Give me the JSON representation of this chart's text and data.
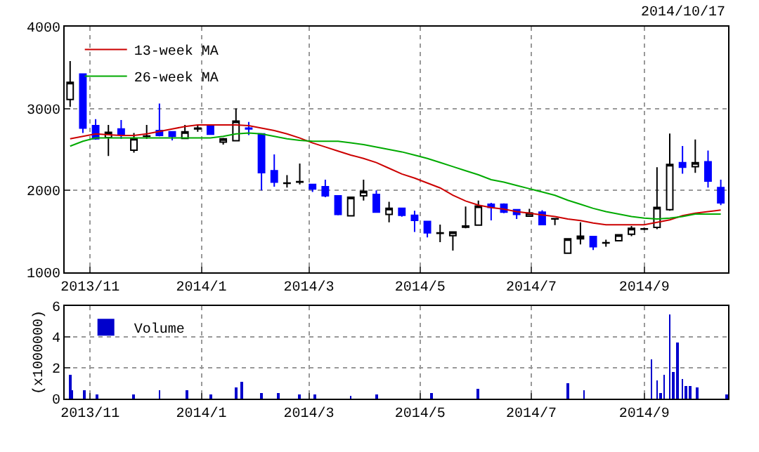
{
  "chart_data": [
    {
      "type": "candlestick",
      "x": [
        "2013-10-21",
        "2013-10-28",
        "2013-11-04",
        "2013-11-11",
        "2013-11-18",
        "2013-11-25",
        "2013-12-02",
        "2013-12-09",
        "2013-12-16",
        "2013-12-23",
        "2013-12-30",
        "2014-01-06",
        "2014-01-13",
        "2014-01-20",
        "2014-01-27",
        "2014-02-03",
        "2014-02-10",
        "2014-02-17",
        "2014-02-24",
        "2014-03-03",
        "2014-03-10",
        "2014-03-17",
        "2014-03-24",
        "2014-03-31",
        "2014-04-07",
        "2014-04-14",
        "2014-04-21",
        "2014-04-28",
        "2014-05-05",
        "2014-05-12",
        "2014-05-19",
        "2014-05-26",
        "2014-06-02",
        "2014-06-09",
        "2014-06-16",
        "2014-06-23",
        "2014-06-30",
        "2014-07-07",
        "2014-07-14",
        "2014-07-21",
        "2014-07-28",
        "2014-08-04",
        "2014-08-11",
        "2014-08-18",
        "2014-08-25",
        "2014-09-01",
        "2014-09-08",
        "2014-09-15",
        "2014-09-22",
        "2014-09-29",
        "2014-10-06",
        "2014-10-13"
      ],
      "ohlc": [
        [
          3110,
          3580,
          3020,
          3320
        ],
        [
          3420,
          3420,
          2700,
          2760
        ],
        [
          2790,
          2870,
          2620,
          2630
        ],
        [
          2645,
          2800,
          2420,
          2710
        ],
        [
          2750,
          2860,
          2630,
          2685
        ],
        [
          2490,
          2700,
          2460,
          2635
        ],
        [
          2660,
          2800,
          2630,
          2665
        ],
        [
          2730,
          3060,
          2660,
          2670
        ],
        [
          2715,
          2715,
          2610,
          2660
        ],
        [
          2635,
          2800,
          2635,
          2715
        ],
        [
          2750,
          2800,
          2715,
          2760
        ],
        [
          2800,
          2800,
          2685,
          2685
        ],
        [
          2590,
          2640,
          2560,
          2630
        ],
        [
          2606,
          3000,
          2600,
          2846
        ],
        [
          2760,
          2835,
          2675,
          2750
        ],
        [
          2690,
          2690,
          2000,
          2217
        ],
        [
          2240,
          2440,
          2045,
          2100
        ],
        [
          2085,
          2186,
          2034,
          2090
        ],
        [
          2100,
          2328,
          2073,
          2107
        ],
        [
          2073,
          2073,
          1980,
          2017
        ],
        [
          2045,
          2130,
          1915,
          1932
        ],
        [
          1932,
          1932,
          1695,
          1706
        ],
        [
          1689,
          1915,
          1689,
          1915
        ],
        [
          1932,
          2130,
          1876,
          1989
        ],
        [
          1950,
          2000,
          1734,
          1734
        ],
        [
          1706,
          1860,
          1610,
          1780
        ],
        [
          1780,
          1780,
          1678,
          1695
        ],
        [
          1695,
          1750,
          1491,
          1633
        ],
        [
          1621,
          1621,
          1424,
          1480
        ],
        [
          1475,
          1582,
          1367,
          1480
        ],
        [
          1446,
          1491,
          1265,
          1491
        ],
        [
          1550,
          1802,
          1537,
          1565
        ],
        [
          1576,
          1876,
          1576,
          1808
        ],
        [
          1830,
          1847,
          1633,
          1791
        ],
        [
          1830,
          1840,
          1720,
          1734
        ],
        [
          1763,
          1763,
          1650,
          1706
        ],
        [
          1684,
          1774,
          1684,
          1723
        ],
        [
          1734,
          1757,
          1582,
          1582
        ],
        [
          1650,
          1655,
          1576,
          1655
        ],
        [
          1232,
          1407,
          1232,
          1407
        ],
        [
          1407,
          1610,
          1339,
          1441
        ],
        [
          1435,
          1435,
          1271,
          1311
        ],
        [
          1356,
          1396,
          1311,
          1360
        ],
        [
          1384,
          1458,
          1384,
          1458
        ],
        [
          1463,
          1565,
          1441,
          1537
        ],
        [
          1525,
          1545,
          1515,
          1531
        ],
        [
          1548,
          2283,
          1525,
          1791
        ],
        [
          1763,
          2695,
          1751,
          2316
        ],
        [
          2339,
          2542,
          2203,
          2283
        ],
        [
          2288,
          2621,
          2215,
          2339
        ],
        [
          2350,
          2486,
          2034,
          2113
        ],
        [
          2034,
          2130,
          1819,
          1847
        ]
      ],
      "series": [
        {
          "name": "13-week MA",
          "color": "#cc0000",
          "type": "line",
          "values": [
            2630,
            2660,
            2690,
            2680,
            2670,
            2670,
            2690,
            2720,
            2750,
            2780,
            2800,
            2800,
            2800,
            2800,
            2790,
            2760,
            2730,
            2690,
            2640,
            2580,
            2530,
            2480,
            2430,
            2390,
            2340,
            2270,
            2200,
            2150,
            2090,
            2030,
            1940,
            1870,
            1820,
            1790,
            1770,
            1740,
            1720,
            1700,
            1680,
            1650,
            1630,
            1600,
            1580,
            1580,
            1580,
            1580,
            1610,
            1640,
            1690,
            1720,
            1740,
            1760
          ]
        },
        {
          "name": "26-week MA",
          "color": "#00aa00",
          "type": "line",
          "values": [
            2540,
            2600,
            2640,
            2640,
            2640,
            2640,
            2640,
            2640,
            2640,
            2640,
            2640,
            2640,
            2660,
            2690,
            2700,
            2690,
            2660,
            2630,
            2610,
            2600,
            2600,
            2600,
            2580,
            2560,
            2530,
            2500,
            2470,
            2430,
            2390,
            2340,
            2290,
            2240,
            2190,
            2130,
            2100,
            2060,
            2020,
            1980,
            1940,
            1880,
            1830,
            1780,
            1740,
            1710,
            1680,
            1660,
            1650,
            1660,
            1680,
            1710,
            1710,
            1710
          ]
        }
      ],
      "xlim": [
        "2013-10-18",
        "2014-10-17"
      ],
      "xticks": [
        {
          "value": "2013-11-01",
          "label": "2013/11"
        },
        {
          "value": "2014-01-01",
          "label": "2014/1"
        },
        {
          "value": "2014-03-01",
          "label": "2014/3"
        },
        {
          "value": "2014-05-01",
          "label": "2014/5"
        },
        {
          "value": "2014-07-01",
          "label": "2014/7"
        },
        {
          "value": "2014-09-01",
          "label": "2014/9"
        }
      ],
      "ylim": [
        1000,
        4000
      ],
      "yticks": [
        1000,
        2000,
        3000,
        4000
      ],
      "grid": true,
      "legend": "top left",
      "annotations": [
        "2014/10/17"
      ]
    },
    {
      "type": "bar",
      "x": [
        "2013-10-21",
        "2013-10-22",
        "2013-10-29",
        "2013-11-05",
        "2013-11-25",
        "2013-12-09",
        "2013-12-24",
        "2014-01-06",
        "2014-01-20",
        "2014-01-23",
        "2014-02-03",
        "2014-02-12",
        "2014-02-24",
        "2014-03-04",
        "2014-03-24",
        "2014-04-07",
        "2014-05-07",
        "2014-06-02",
        "2014-07-21",
        "2014-07-30",
        "2014-09-05",
        "2014-09-08",
        "2014-09-10",
        "2014-09-12",
        "2014-09-15",
        "2014-09-17",
        "2014-09-19",
        "2014-09-22",
        "2014-09-24",
        "2014-09-26",
        "2014-09-30",
        "2014-10-16"
      ],
      "series": [
        {
          "name": "Volume",
          "color": "#0000cc",
          "values": [
            1.5,
            0.5,
            0.5,
            0.3,
            0.3,
            0.5,
            0.5,
            0.3,
            0.7,
            1.1,
            0.4,
            0.4,
            0.3,
            0.3,
            0.2,
            0.3,
            0.4,
            0.6,
            1.0,
            0.5,
            2.5,
            1.2,
            0.4,
            1.5,
            5.5,
            1.7,
            3.6,
            1.3,
            0.8,
            0.8,
            0.7,
            0.3
          ]
        }
      ],
      "xlim": [
        "2013-10-18",
        "2014-10-17"
      ],
      "xticks": [
        {
          "value": "2013-11-01",
          "label": "2013/11"
        },
        {
          "value": "2014-01-01",
          "label": "2014/1"
        },
        {
          "value": "2014-03-01",
          "label": "2014/3"
        },
        {
          "value": "2014-05-01",
          "label": "2014/5"
        },
        {
          "value": "2014-07-01",
          "label": "2014/7"
        },
        {
          "value": "2014-09-01",
          "label": "2014/9"
        }
      ],
      "ylim": [
        0,
        6
      ],
      "yticks": [
        0,
        2,
        4,
        6
      ],
      "ylabel": "(x1000000)",
      "grid": true,
      "legend": "top left"
    }
  ]
}
